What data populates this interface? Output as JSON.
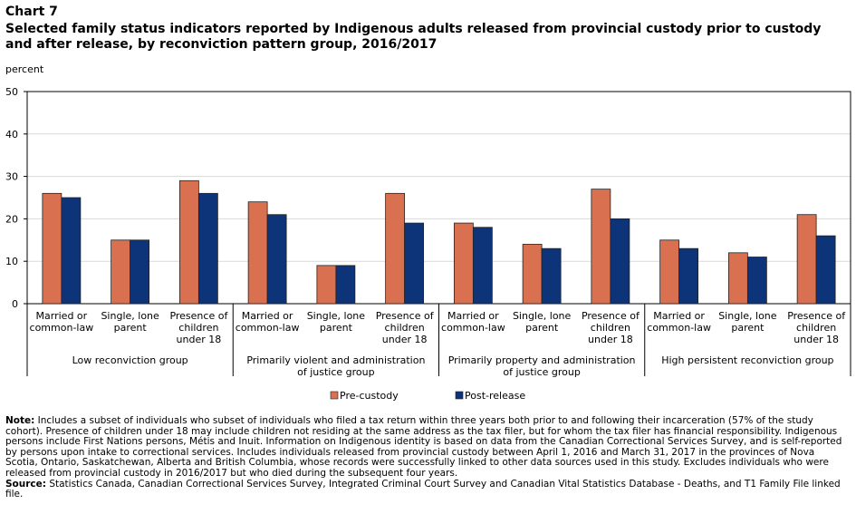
{
  "header": {
    "chart_label": "Chart 7",
    "title": "Selected family status indicators reported by Indigenous adults released from provincial custody prior to custody and after release, by reconviction pattern group, 2016/2017"
  },
  "colors": {
    "pre": "#d9704f",
    "post": "#0d3478",
    "axis": "#000000",
    "grid": "#d9d9d9"
  },
  "chart_data": {
    "type": "bar",
    "ylabel": "percent",
    "ylim": [
      0,
      50
    ],
    "yticks": [
      0,
      10,
      20,
      30,
      40,
      50
    ],
    "grid": true,
    "legend_position": "bottom",
    "groups": [
      {
        "name": "Low reconviction group",
        "categories": [
          [
            "Married or",
            "common-law"
          ],
          [
            "Single, lone",
            "parent"
          ],
          [
            "Presence of",
            "children",
            "under 18"
          ]
        ]
      },
      {
        "name": [
          "Primarily violent and administration",
          "of justice group"
        ],
        "categories": [
          [
            "Married or",
            "common-law"
          ],
          [
            "Single, lone",
            "parent"
          ],
          [
            "Presence of",
            "children",
            "under 18"
          ]
        ]
      },
      {
        "name": [
          "Primarily property and administration",
          "of justice group"
        ],
        "categories": [
          [
            "Married or",
            "common-law"
          ],
          [
            "Single, lone",
            "parent"
          ],
          [
            "Presence of",
            "children",
            "under 18"
          ]
        ]
      },
      {
        "name": "High persistent reconviction group",
        "categories": [
          [
            "Married or",
            "common-law"
          ],
          [
            "Single, lone",
            "parent"
          ],
          [
            "Presence of",
            "children",
            "under 18"
          ]
        ]
      }
    ],
    "series": [
      {
        "name": "Pre-custody",
        "values": [
          26,
          15,
          29,
          24,
          9,
          26,
          19,
          14,
          27,
          15,
          12,
          21
        ]
      },
      {
        "name": "Post-release",
        "values": [
          25,
          15,
          26,
          21,
          9,
          19,
          18,
          13,
          20,
          13,
          11,
          16
        ]
      }
    ]
  },
  "notes": {
    "note_label": "Note:",
    "note_text": " Includes a subset of individuals who subset of individuals who filed a tax return within three years both prior to and following their incarceration (57% of the study cohort). Presence of children under 18 may include children not residing at the same address as the tax filer, but for whom the tax filer has financial responsibility. Indigenous persons include First Nations persons, Métis and Inuit. Information on Indigenous identity is based on data from the Canadian Correctional Services Survey, and is self-reported by persons upon intake to correctional services. Includes individuals released from provincial custody between April 1, 2016 and March 31, 2017 in the provinces of Nova Scotia, Ontario, Saskatchewan, Alberta and British Columbia, whose records were successfully linked to other data sources used in this study. Excludes individuals who were released from provincial custody in 2016/2017 but who died during the subsequent four years.",
    "source_label": "Source:",
    "source_text": " Statistics Canada, Canadian Correctional Services Survey, Integrated Criminal Court Survey and Canadian Vital Statistics Database - Deaths, and T1 Family File linked file."
  }
}
